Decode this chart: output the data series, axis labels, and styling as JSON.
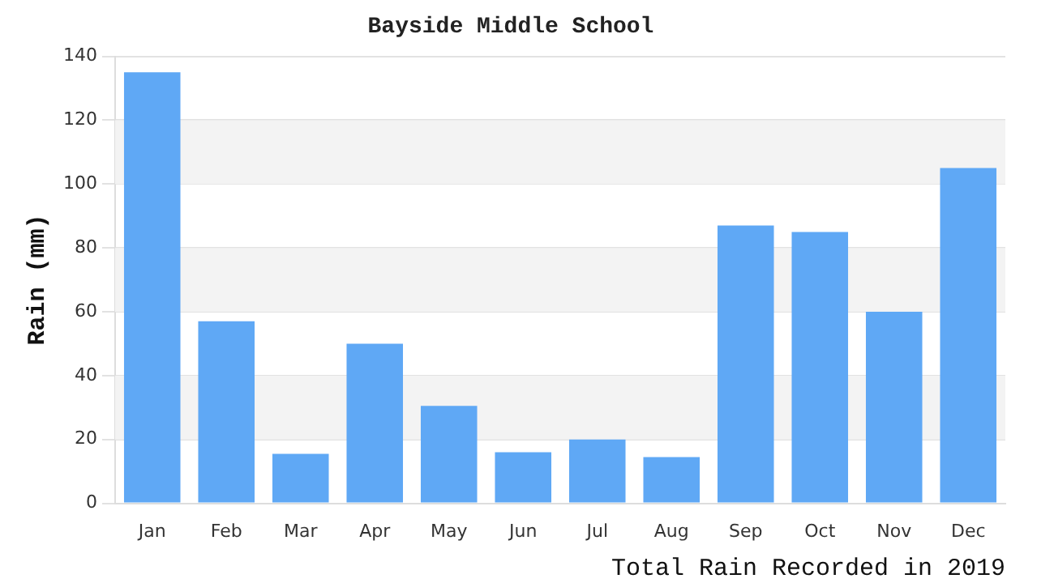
{
  "chart_data": {
    "type": "bar",
    "title": "Bayside Middle School",
    "xlabel": "Total Rain Recorded in 2019",
    "ylabel": "Rain (mm)",
    "categories": [
      "Jan",
      "Feb",
      "Mar",
      "Apr",
      "May",
      "Jun",
      "Jul",
      "Aug",
      "Sep",
      "Oct",
      "Nov",
      "Dec"
    ],
    "values": [
      135,
      57,
      15.5,
      50,
      30.5,
      16,
      20,
      14.5,
      87,
      85,
      60,
      105
    ],
    "color": "#5fa8f5",
    "ylim": [
      0,
      140
    ],
    "yticks": [
      0,
      20,
      40,
      60,
      80,
      100,
      120,
      140
    ],
    "grid": "y",
    "legend": false
  }
}
